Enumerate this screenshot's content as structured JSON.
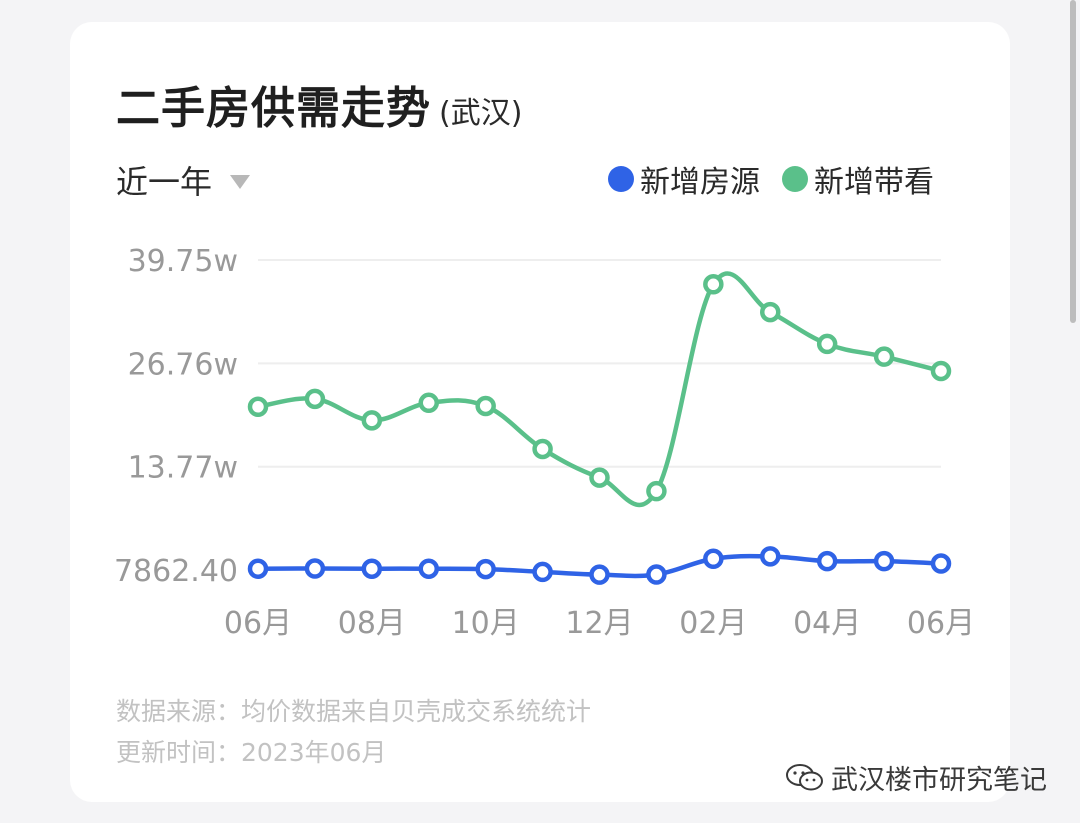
{
  "title": "二手房供需走势",
  "subtitle": "(武汉)",
  "range_selector": {
    "label": "近一年"
  },
  "legend": [
    {
      "name": "新增房源",
      "color": "#2f63e6"
    },
    {
      "name": "新增带看",
      "color": "#5ac08a"
    }
  ],
  "chart_data": {
    "type": "line",
    "x": [
      "2022-06",
      "2022-07",
      "2022-08",
      "2022-09",
      "2022-10",
      "2022-11",
      "2022-12",
      "2023-01",
      "2023-02",
      "2023-03",
      "2023-04",
      "2023-05",
      "2023-06"
    ],
    "x_tick_labels": [
      "06月",
      "08月",
      "10月",
      "12月",
      "02月",
      "04月",
      "06月"
    ],
    "x_tick_positions": [
      0,
      2,
      4,
      6,
      8,
      10,
      12
    ],
    "y_tick_labels": [
      "39.75w",
      "26.76w",
      "13.77w",
      "7862.40"
    ],
    "y_ticks": [
      397500,
      267600,
      137700,
      7862.4
    ],
    "ylim": [
      7862.4,
      397500
    ],
    "grid": "horizontal",
    "smooth": true,
    "series": [
      {
        "name": "新增房源",
        "color": "#2f63e6",
        "values": [
          9500,
          9700,
          9500,
          9500,
          9000,
          5500,
          2000,
          2200,
          22000,
          25000,
          19000,
          19000,
          16000
        ]
      },
      {
        "name": "新增带看",
        "color": "#5ac08a",
        "values": [
          213000,
          223000,
          196000,
          218000,
          214000,
          160000,
          124000,
          107000,
          367000,
          332000,
          292000,
          276000,
          258000
        ]
      }
    ]
  },
  "footer": {
    "source": "数据来源：均价数据来自贝壳成交系统统计",
    "updated": "更新时间：2023年06月"
  },
  "watermark": {
    "text": "武汉楼市研究笔记",
    "icon": "wechat-icon"
  }
}
